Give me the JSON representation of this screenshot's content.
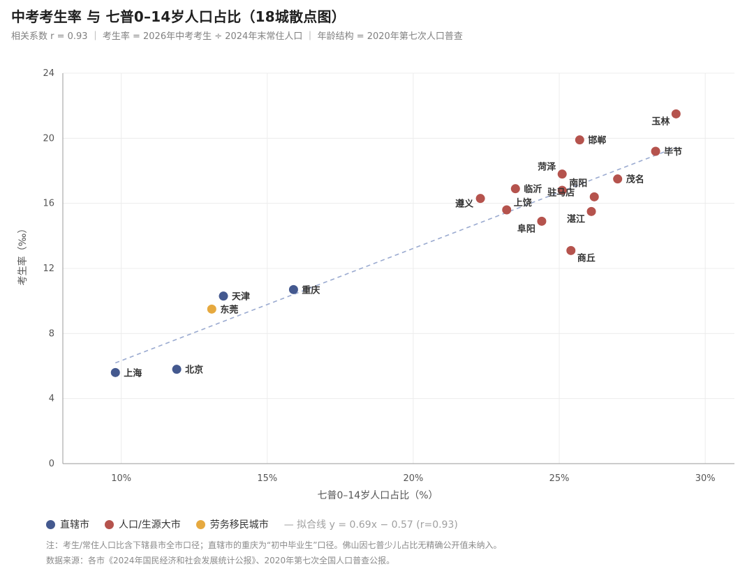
{
  "header": {
    "title": "中考考生率 与 七普0–14岁人口占比（18城散点图）",
    "subtitle": "相关系数 r = 0.93  ｜  考生率 = 2026年中考考生 ÷ 2024年末常住人口  ｜  年龄结构 = 2020年第七次人口普查"
  },
  "legend": {
    "items": [
      {
        "label": "直辖市",
        "color": "#44598f"
      },
      {
        "label": "人口/生源大市",
        "color": "#b5534d"
      },
      {
        "label": "劳务移民城市",
        "color": "#e6a93f"
      }
    ],
    "fit_label": "— 拟合线 y = 0.69x − 0.57 (r=0.93)"
  },
  "footnotes": {
    "note": "注：考生/常住人口比含下辖县市全市口径；直辖市的重庆为“初中毕业生”口径。佛山因七普少儿占比无精确公开值未纳入。",
    "source": "数据来源：各市《2024年国民经济和社会发展统计公报》、2020年第七次全国人口普查公报。"
  },
  "chart_data": {
    "type": "scatter",
    "title": "中考考生率 与 七普0–14岁人口占比（18城散点图）",
    "xlabel": "七普0–14岁人口占比（%）",
    "ylabel": "考生率（‰）",
    "xlim": [
      8,
      31
    ],
    "ylim": [
      0,
      24
    ],
    "x_ticks": [
      {
        "v": 10,
        "label": "10%"
      },
      {
        "v": 15,
        "label": "15%"
      },
      {
        "v": 20,
        "label": "20%"
      },
      {
        "v": 25,
        "label": "25%"
      },
      {
        "v": 30,
        "label": "30%"
      }
    ],
    "y_ticks": [
      {
        "v": 0,
        "label": "0"
      },
      {
        "v": 4,
        "label": "4"
      },
      {
        "v": 8,
        "label": "8"
      },
      {
        "v": 12,
        "label": "12"
      },
      {
        "v": 16,
        "label": "16"
      },
      {
        "v": 20,
        "label": "20"
      },
      {
        "v": 24,
        "label": "24"
      }
    ],
    "grid": true,
    "legend_position": "bottom-left",
    "colors": {
      "直辖市": "#44598f",
      "人口/生源大市": "#b5534d",
      "劳务移民城市": "#e6a93f",
      "fit": "#9aaad0"
    },
    "fit": {
      "slope": 0.69,
      "intercept": -0.57,
      "x_range": [
        9.8,
        29.0
      ],
      "r": 0.93
    },
    "points": [
      {
        "name": "上海",
        "x": 9.8,
        "y": 5.6,
        "group": "直辖市",
        "anchor": "right"
      },
      {
        "name": "北京",
        "x": 11.9,
        "y": 5.8,
        "group": "直辖市",
        "anchor": "right"
      },
      {
        "name": "天津",
        "x": 13.5,
        "y": 10.3,
        "group": "直辖市",
        "anchor": "right"
      },
      {
        "name": "重庆",
        "x": 15.9,
        "y": 10.7,
        "group": "直辖市",
        "anchor": "right"
      },
      {
        "name": "东莞",
        "x": 13.1,
        "y": 9.5,
        "group": "劳务移民城市",
        "anchor": "right"
      },
      {
        "name": "遵义",
        "x": 22.3,
        "y": 16.3,
        "group": "人口/生源大市",
        "anchor": "left"
      },
      {
        "name": "上饶",
        "x": 23.2,
        "y": 15.6,
        "group": "人口/生源大市",
        "anchor": "upright"
      },
      {
        "name": "临沂",
        "x": 23.5,
        "y": 16.9,
        "group": "人口/生源大市",
        "anchor": "right"
      },
      {
        "name": "阜阳",
        "x": 24.4,
        "y": 14.9,
        "group": "人口/生源大市",
        "anchor": "downleft"
      },
      {
        "name": "菏泽",
        "x": 25.1,
        "y": 17.8,
        "group": "人口/生源大市",
        "anchor": "upleft"
      },
      {
        "name": "南阳",
        "x": 25.1,
        "y": 16.8,
        "group": "人口/生源大市",
        "anchor": "upright"
      },
      {
        "name": "驻马店",
        "x": 26.2,
        "y": 16.4,
        "group": "人口/生源大市",
        "anchor": "upleftfar"
      },
      {
        "name": "湛江",
        "x": 26.1,
        "y": 15.5,
        "group": "人口/生源大市",
        "anchor": "downleft"
      },
      {
        "name": "商丘",
        "x": 25.4,
        "y": 13.1,
        "group": "人口/生源大市",
        "anchor": "downright"
      },
      {
        "name": "邯郸",
        "x": 25.7,
        "y": 19.9,
        "group": "人口/生源大市",
        "anchor": "right"
      },
      {
        "name": "茂名",
        "x": 27.0,
        "y": 17.5,
        "group": "人口/生源大市",
        "anchor": "right"
      },
      {
        "name": "毕节",
        "x": 28.3,
        "y": 19.2,
        "group": "人口/生源大市",
        "anchor": "right"
      },
      {
        "name": "玉林",
        "x": 29.0,
        "y": 21.5,
        "group": "人口/生源大市",
        "anchor": "downleft"
      }
    ]
  }
}
